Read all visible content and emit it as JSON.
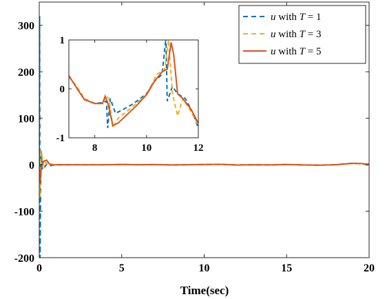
{
  "chart_data": {
    "type": "line",
    "xlabel": "Time(sec)",
    "ylabel": "",
    "xlim": [
      0,
      20
    ],
    "ylim": [
      -200,
      350
    ],
    "xticks": [
      "0",
      "5",
      "10",
      "15",
      "20"
    ],
    "yticks": [
      "-200",
      "-100",
      "0",
      "100",
      "200",
      "300"
    ],
    "grid": false,
    "legend_position": "top-right",
    "colors": {
      "T1": "#0072BD",
      "T3": "#EDB120",
      "T5": "#D95319"
    },
    "legend": [
      {
        "var": "u",
        "mid": " with ",
        "param": "T",
        "eq": " = ",
        "value": "1"
      },
      {
        "var": "u",
        "mid": " with ",
        "param": "T",
        "eq": " = ",
        "value": "3"
      },
      {
        "var": "u",
        "mid": " with ",
        "param": "T",
        "eq": " = ",
        "value": "5"
      }
    ],
    "series": [
      {
        "style": "dashed",
        "color": "#0072BD",
        "points": [
          [
            0,
            0
          ],
          [
            0.02,
            320
          ],
          [
            0.05,
            -200
          ],
          [
            0.08,
            -60
          ],
          [
            0.12,
            30
          ],
          [
            0.18,
            -10
          ],
          [
            0.25,
            8
          ],
          [
            0.35,
            -4
          ],
          [
            0.5,
            3
          ],
          [
            0.7,
            -2
          ],
          [
            1,
            0
          ],
          [
            2,
            0
          ],
          [
            3,
            0
          ],
          [
            4,
            0
          ],
          [
            5,
            0.5
          ],
          [
            6,
            0
          ],
          [
            7,
            0.3
          ],
          [
            8,
            -0.5
          ],
          [
            9,
            0
          ],
          [
            10,
            0.4
          ],
          [
            11,
            0.8
          ],
          [
            12,
            -0.6
          ],
          [
            13,
            0
          ],
          [
            14,
            -0.5
          ],
          [
            15,
            0.5
          ],
          [
            16,
            -0.5
          ],
          [
            17,
            -1
          ],
          [
            18,
            0
          ],
          [
            18.5,
            2
          ],
          [
            19,
            3
          ],
          [
            19.5,
            2
          ],
          [
            20,
            1
          ]
        ]
      },
      {
        "style": "dashed",
        "color": "#EDB120",
        "points": [
          [
            0,
            0
          ],
          [
            0.05,
            -70
          ],
          [
            0.1,
            30
          ],
          [
            0.15,
            25
          ],
          [
            0.22,
            5
          ],
          [
            0.3,
            -5
          ],
          [
            0.4,
            6
          ],
          [
            0.55,
            -2
          ],
          [
            0.7,
            2
          ],
          [
            1,
            -1
          ],
          [
            2,
            0
          ],
          [
            3,
            0
          ],
          [
            4,
            0
          ],
          [
            5,
            0.5
          ],
          [
            6,
            0
          ],
          [
            7,
            0.3
          ],
          [
            8,
            -0.5
          ],
          [
            9,
            0
          ],
          [
            10,
            0.5
          ],
          [
            11,
            0.8
          ],
          [
            12,
            -0.6
          ],
          [
            13,
            0
          ],
          [
            14,
            -0.5
          ],
          [
            15,
            0.5
          ],
          [
            16,
            -0.5
          ],
          [
            17,
            -1
          ],
          [
            18,
            0
          ],
          [
            18.5,
            1.5
          ],
          [
            19,
            3
          ],
          [
            19.5,
            2
          ],
          [
            20,
            -2
          ]
        ]
      },
      {
        "style": "solid",
        "color": "#D95319",
        "points": [
          [
            0,
            0
          ],
          [
            0.05,
            -40
          ],
          [
            0.12,
            -8
          ],
          [
            0.2,
            3
          ],
          [
            0.3,
            8
          ],
          [
            0.45,
            10
          ],
          [
            0.6,
            2
          ],
          [
            0.8,
            -1
          ],
          [
            1,
            0
          ],
          [
            2,
            0
          ],
          [
            3,
            0
          ],
          [
            4,
            0
          ],
          [
            5,
            0.5
          ],
          [
            6,
            0
          ],
          [
            7,
            0.3
          ],
          [
            8,
            -0.5
          ],
          [
            9,
            0
          ],
          [
            10,
            0.5
          ],
          [
            11,
            0.8
          ],
          [
            12,
            -0.6
          ],
          [
            13,
            0
          ],
          [
            14,
            -0.5
          ],
          [
            15,
            0.5
          ],
          [
            16,
            -0.5
          ],
          [
            17,
            -1
          ],
          [
            18,
            0
          ],
          [
            18.5,
            1.5
          ],
          [
            19,
            3
          ],
          [
            19.5,
            2.5
          ],
          [
            20,
            1
          ]
        ]
      }
    ],
    "inset": {
      "xlim": [
        7,
        12
      ],
      "ylim": [
        -1,
        1
      ],
      "xticks": [
        "8",
        "10",
        "12"
      ],
      "yticks": [
        "-1",
        "0",
        "1"
      ],
      "series": [
        {
          "style": "dashed",
          "color": "#0072BD",
          "points": [
            [
              7,
              0.25
            ],
            [
              7.3,
              0.05
            ],
            [
              7.6,
              -0.2
            ],
            [
              8,
              -0.3
            ],
            [
              8.3,
              -0.28
            ],
            [
              8.45,
              -0.25
            ],
            [
              8.5,
              -0.8
            ],
            [
              8.6,
              -0.2
            ],
            [
              8.8,
              -0.5
            ],
            [
              9.1,
              -0.42
            ],
            [
              9.5,
              -0.3
            ],
            [
              10,
              -0.1
            ],
            [
              10.3,
              0.15
            ],
            [
              10.6,
              0.3
            ],
            [
              10.75,
              1.05
            ],
            [
              10.8,
              -0.25
            ],
            [
              11,
              0.05
            ],
            [
              11.2,
              -0.1
            ],
            [
              11.5,
              -0.2
            ],
            [
              11.8,
              -0.5
            ],
            [
              12,
              -0.8
            ]
          ]
        },
        {
          "style": "dashed",
          "color": "#EDB120",
          "points": [
            [
              7,
              0.25
            ],
            [
              7.3,
              0.05
            ],
            [
              7.6,
              -0.2
            ],
            [
              8,
              -0.3
            ],
            [
              8.3,
              -0.3
            ],
            [
              8.45,
              -0.15
            ],
            [
              8.55,
              -0.2
            ],
            [
              8.7,
              -0.8
            ],
            [
              8.9,
              -0.6
            ],
            [
              9.2,
              -0.48
            ],
            [
              9.6,
              -0.3
            ],
            [
              10,
              -0.12
            ],
            [
              10.4,
              0.3
            ],
            [
              10.7,
              0.4
            ],
            [
              10.85,
              1.0
            ],
            [
              11,
              -0.1
            ],
            [
              11.2,
              -0.55
            ],
            [
              11.4,
              -0.2
            ],
            [
              11.7,
              -0.45
            ],
            [
              12,
              -0.75
            ]
          ]
        },
        {
          "style": "solid",
          "color": "#D95319",
          "points": [
            [
              7,
              0.27
            ],
            [
              7.3,
              0.02
            ],
            [
              7.6,
              -0.22
            ],
            [
              8,
              -0.3
            ],
            [
              8.3,
              -0.3
            ],
            [
              8.4,
              -0.15
            ],
            [
              8.5,
              -0.28
            ],
            [
              8.7,
              -0.75
            ],
            [
              8.9,
              -0.7
            ],
            [
              9.2,
              -0.55
            ],
            [
              9.6,
              -0.35
            ],
            [
              10,
              -0.12
            ],
            [
              10.3,
              0.15
            ],
            [
              10.6,
              0.35
            ],
            [
              10.8,
              0.4
            ],
            [
              10.95,
              0.95
            ],
            [
              11.05,
              0.7
            ],
            [
              11.2,
              -0.1
            ],
            [
              11.4,
              -0.2
            ],
            [
              11.7,
              -0.4
            ],
            [
              12,
              -0.7
            ]
          ]
        }
      ]
    }
  }
}
